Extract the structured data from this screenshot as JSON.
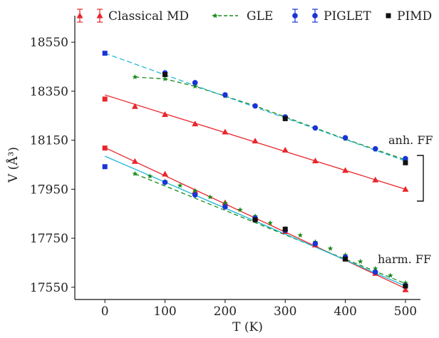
{
  "chart_data": {
    "type": "scatter",
    "xlabel": "T (K)",
    "ylabel": "V (Å³)",
    "xlim": [
      -50,
      525
    ],
    "ylim": [
      17500,
      18600
    ],
    "xticks": [
      0,
      100,
      200,
      300,
      400,
      500
    ],
    "yticks": [
      17550,
      17750,
      17950,
      18150,
      18350,
      18550
    ],
    "legend_position": "top",
    "legend": [
      "Classical MD",
      "GLE",
      "PIGLET",
      "PIMD"
    ],
    "annotations": {
      "anh": "anh. FF",
      "harm": "harm. FF"
    },
    "series": [
      {
        "name": "Classical MD",
        "group": "anh",
        "color": "#e8262b",
        "marker": "triangle",
        "x": [
          50,
          100,
          150,
          200,
          250,
          300,
          350,
          400,
          450,
          500
        ],
        "y": [
          18288,
          18255,
          18217,
          18184,
          18147,
          18110,
          18066,
          18027,
          17988,
          17950
        ],
        "fit": {
          "x": [
            0,
            500
          ],
          "y": [
            18335,
            17950
          ],
          "color": "#e8262b"
        }
      },
      {
        "name": "Classical MD",
        "group": "harm",
        "color": "#e8262b",
        "marker": "triangle",
        "x": [
          50,
          100,
          150,
          200,
          250,
          300,
          350,
          400,
          450,
          500
        ],
        "y": [
          18064,
          18012,
          17942,
          17895,
          17832,
          17778,
          17723,
          17667,
          17607,
          17540
        ],
        "fit": {
          "x": [
            0,
            500
          ],
          "y": [
            18120,
            17545
          ],
          "color": "#e8262b"
        }
      },
      {
        "name": "GLE",
        "group": "anh",
        "color": "#1a8a1a",
        "marker": "star",
        "x": [
          50,
          100,
          150,
          200,
          250,
          300,
          350,
          400,
          450,
          500
        ],
        "y": [
          18408,
          18400,
          18370,
          18330,
          18290,
          18245,
          18200,
          18155,
          18112,
          18070
        ],
        "fit": {
          "x": [
            50,
            100,
            150,
            200,
            250,
            300,
            350,
            400,
            450,
            500
          ],
          "y": [
            18408,
            18400,
            18370,
            18330,
            18290,
            18245,
            18200,
            18155,
            18112,
            18070
          ],
          "color": "#1a8a1a",
          "dash": "6 4"
        }
      },
      {
        "name": "GLE",
        "group": "harm",
        "color": "#1a8a1a",
        "marker": "star",
        "x": [
          50,
          75,
          100,
          125,
          150,
          175,
          200,
          225,
          250,
          275,
          300,
          325,
          350,
          375,
          400,
          425,
          450,
          475,
          500
        ],
        "y": [
          18013,
          18003,
          17982,
          17965,
          17943,
          17918,
          17893,
          17866,
          17840,
          17812,
          17788,
          17762,
          17735,
          17708,
          17681,
          17655,
          17626,
          17598,
          17568
        ],
        "fit": {
          "x": [
            50,
            500
          ],
          "y": [
            18013,
            17565
          ],
          "color": "#1a8a1a",
          "dash": "6 4"
        }
      },
      {
        "name": "PIGLET",
        "group": "anh",
        "color": "#1a33d6",
        "marker": "circle",
        "x": [
          100,
          150,
          200,
          250,
          300,
          350,
          400,
          450,
          500
        ],
        "y": [
          18425,
          18385,
          18335,
          18290,
          18245,
          18200,
          18160,
          18115,
          18075
        ],
        "fit": {
          "x": [
            0,
            500
          ],
          "y": [
            18505,
            18065
          ],
          "color": "#22b8d8",
          "dash": "7 4"
        }
      },
      {
        "name": "PIGLET",
        "group": "harm",
        "color": "#1a33d6",
        "marker": "circle",
        "x": [
          100,
          150,
          200,
          250,
          300,
          350,
          400,
          450,
          500
        ],
        "y": [
          17978,
          17927,
          17878,
          17832,
          17782,
          17728,
          17673,
          17612,
          17557
        ],
        "fit": {
          "x": [
            0,
            500
          ],
          "y": [
            18085,
            17555
          ],
          "color": "#22b8d8"
        }
      },
      {
        "name": "PIMD",
        "group": "anh",
        "color": "#111111",
        "marker": "square",
        "x": [
          100,
          300,
          500
        ],
        "y": [
          18418,
          18238,
          18058
        ]
      },
      {
        "name": "PIMD",
        "group": "harm",
        "color": "#111111",
        "marker": "square",
        "x": [
          250,
          300,
          400,
          500
        ],
        "y": [
          17825,
          17787,
          17665,
          17555
        ]
      },
      {
        "name": "T0 anh",
        "group": "anh",
        "color": "#e8262b",
        "marker": "square",
        "x": [
          0
        ],
        "y": [
          18318
        ]
      },
      {
        "name": "T0 PIGLET anh",
        "group": "anh",
        "color": "#1a33d6",
        "marker": "square",
        "x": [
          0
        ],
        "y": [
          18505
        ]
      },
      {
        "name": "T0 harm",
        "group": "harm",
        "color": "#e8262b",
        "marker": "square",
        "x": [
          0
        ],
        "y": [
          18118
        ]
      },
      {
        "name": "T0 PIGLET harm",
        "group": "harm",
        "color": "#1a33d6",
        "marker": "square",
        "x": [
          0
        ],
        "y": [
          18042
        ]
      }
    ]
  }
}
